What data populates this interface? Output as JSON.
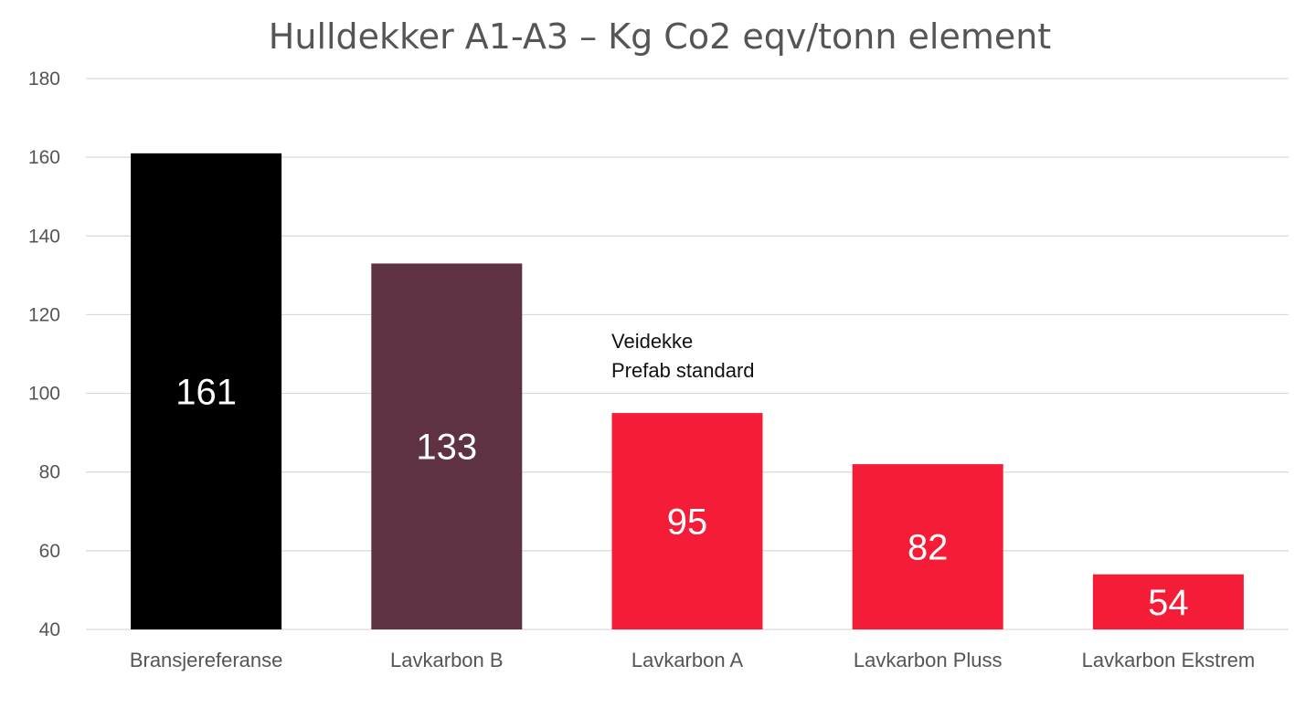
{
  "chart_data": {
    "type": "bar",
    "title": "Hulldekker A1-A3 – Kg Co2 eqv/tonn element",
    "xlabel": "",
    "ylabel": "",
    "categories": [
      "Bransjereferanse",
      "Lavkarbon B",
      "Lavkarbon A",
      "Lavkarbon Pluss",
      "Lavkarbon Ekstrem"
    ],
    "values": [
      161,
      133,
      95,
      82,
      54
    ],
    "data_labels": [
      "161",
      "133",
      "95",
      "82",
      "54"
    ],
    "bar_colors": [
      "#000000",
      "#5e3243",
      "#f41c36",
      "#f41c36",
      "#f41c36"
    ],
    "ylim": [
      40,
      180
    ],
    "yticks": [
      40,
      60,
      80,
      100,
      120,
      140,
      160,
      180
    ],
    "ytick_labels": [
      "40",
      "60",
      "80",
      "100",
      "120",
      "140",
      "160",
      "180"
    ],
    "grid": true,
    "legend": "none",
    "annotation": {
      "lines": [
        "Veidekke",
        "Prefab standard"
      ],
      "category": "Lavkarbon A"
    }
  }
}
